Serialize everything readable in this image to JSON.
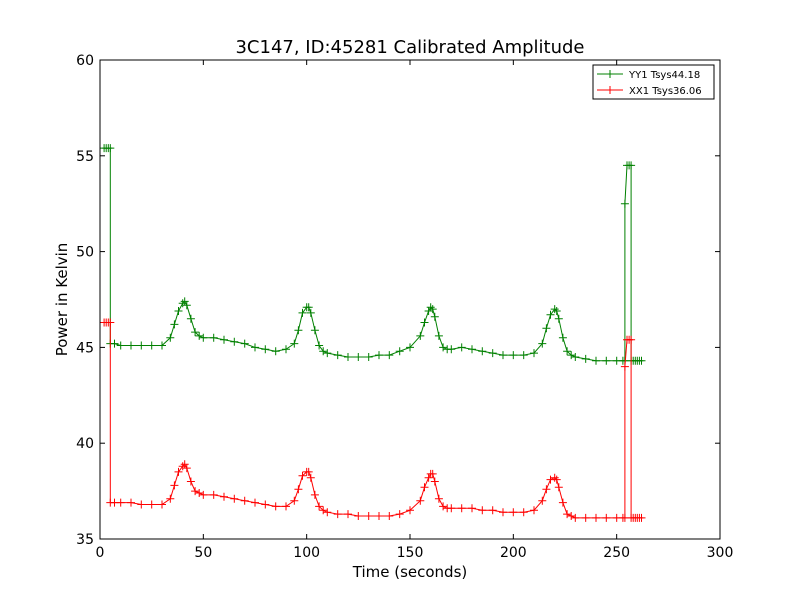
{
  "chart_data": {
    "type": "line",
    "title": "3C147, ID:45281 Calibrated Amplitude",
    "xlabel": "Time (seconds)",
    "ylabel": "Power in Kelvin",
    "xlim": [
      0,
      300
    ],
    "ylim": [
      35,
      60
    ],
    "xticks": [
      0,
      50,
      100,
      150,
      200,
      250,
      300
    ],
    "yticks": [
      35,
      40,
      45,
      50,
      55,
      60
    ],
    "grid": false,
    "legend_position": "top-right",
    "marker": "+",
    "series": [
      {
        "name": "YY1 Tsys44.18",
        "color": "#008000",
        "x": [
          2,
          3,
          4,
          5,
          5,
          7,
          10,
          15,
          20,
          25,
          30,
          34,
          36,
          38,
          40,
          41,
          42,
          44,
          46,
          48,
          50,
          55,
          60,
          65,
          70,
          75,
          80,
          85,
          90,
          94,
          96,
          98,
          100,
          101,
          102,
          104,
          106,
          108,
          110,
          115,
          120,
          125,
          130,
          135,
          140,
          145,
          150,
          155,
          157,
          159,
          160,
          161,
          162,
          164,
          166,
          168,
          170,
          175,
          180,
          185,
          190,
          195,
          200,
          205,
          210,
          214,
          216,
          218,
          220,
          221,
          222,
          224,
          226,
          228,
          230,
          235,
          240,
          245,
          250,
          253,
          254,
          254,
          255,
          256,
          257,
          257,
          258,
          259,
          260,
          261,
          262
        ],
        "y": [
          55.4,
          55.4,
          55.4,
          55.4,
          45.2,
          45.2,
          45.1,
          45.1,
          45.1,
          45.1,
          45.1,
          45.5,
          46.2,
          46.9,
          47.3,
          47.4,
          47.2,
          46.5,
          45.8,
          45.6,
          45.5,
          45.5,
          45.4,
          45.3,
          45.2,
          45.0,
          44.9,
          44.8,
          44.9,
          45.2,
          45.9,
          46.8,
          47.1,
          47.1,
          46.8,
          45.9,
          45.1,
          44.8,
          44.7,
          44.6,
          44.5,
          44.5,
          44.5,
          44.6,
          44.6,
          44.8,
          45.0,
          45.6,
          46.3,
          46.9,
          47.1,
          47.0,
          46.6,
          45.6,
          45.0,
          44.9,
          44.9,
          45.0,
          44.9,
          44.8,
          44.7,
          44.6,
          44.6,
          44.6,
          44.7,
          45.2,
          46.0,
          46.7,
          47.0,
          46.9,
          46.5,
          45.5,
          44.8,
          44.6,
          44.5,
          44.4,
          44.3,
          44.3,
          44.3,
          44.3,
          44.3,
          52.5,
          54.5,
          54.5,
          54.5,
          44.3,
          44.3,
          44.3,
          44.3,
          44.3,
          44.3
        ]
      },
      {
        "name": "XX1 Tsys36.06",
        "color": "#ff0000",
        "x": [
          2,
          3,
          4,
          5,
          5,
          7,
          10,
          15,
          20,
          25,
          30,
          34,
          36,
          38,
          40,
          41,
          42,
          44,
          46,
          48,
          50,
          55,
          60,
          65,
          70,
          75,
          80,
          85,
          90,
          94,
          96,
          98,
          100,
          101,
          102,
          104,
          106,
          108,
          110,
          115,
          120,
          125,
          130,
          135,
          140,
          145,
          150,
          155,
          157,
          159,
          160,
          161,
          162,
          164,
          166,
          168,
          170,
          175,
          180,
          185,
          190,
          195,
          200,
          205,
          210,
          214,
          216,
          218,
          220,
          221,
          222,
          224,
          226,
          228,
          230,
          235,
          240,
          245,
          250,
          253,
          254,
          254,
          255,
          256,
          257,
          257,
          258,
          259,
          260,
          261,
          262
        ],
        "y": [
          46.3,
          46.3,
          46.3,
          46.3,
          36.9,
          36.9,
          36.9,
          36.9,
          36.8,
          36.8,
          36.8,
          37.1,
          37.8,
          38.5,
          38.8,
          38.9,
          38.7,
          38.0,
          37.5,
          37.4,
          37.3,
          37.3,
          37.2,
          37.1,
          37.0,
          36.9,
          36.8,
          36.7,
          36.7,
          37.0,
          37.6,
          38.3,
          38.5,
          38.5,
          38.2,
          37.3,
          36.7,
          36.5,
          36.4,
          36.3,
          36.3,
          36.2,
          36.2,
          36.2,
          36.2,
          36.3,
          36.5,
          37.0,
          37.7,
          38.2,
          38.4,
          38.4,
          38.0,
          37.1,
          36.7,
          36.6,
          36.6,
          36.6,
          36.6,
          36.5,
          36.5,
          36.4,
          36.4,
          36.4,
          36.5,
          37.0,
          37.6,
          38.1,
          38.2,
          38.1,
          37.7,
          36.9,
          36.3,
          36.2,
          36.1,
          36.1,
          36.1,
          36.1,
          36.1,
          36.1,
          36.1,
          44.0,
          45.4,
          45.4,
          45.4,
          36.1,
          36.1,
          36.1,
          36.1,
          36.1,
          36.1
        ]
      }
    ]
  }
}
